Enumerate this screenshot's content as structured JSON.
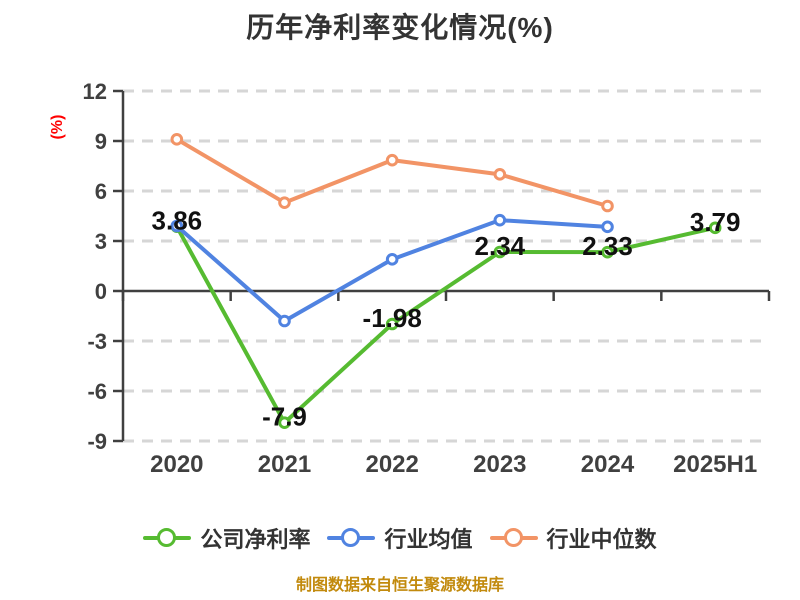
{
  "title": "历年净利率变化情况(%)",
  "y_axis_unit": "(%)",
  "source_note": "制图数据来自恒生聚源数据库",
  "chart_data": {
    "type": "line",
    "categories": [
      "2020",
      "2021",
      "2022",
      "2023",
      "2024",
      "2025H1"
    ],
    "series": [
      {
        "name": "公司净利率",
        "color": "#56bb31",
        "values": [
          3.86,
          -7.9,
          -1.98,
          2.34,
          2.33,
          3.79
        ],
        "point_labels": [
          "3.86",
          "-7.9",
          "-1.98",
          "2.34",
          "2.33",
          "3.79"
        ]
      },
      {
        "name": "行业均值",
        "color": "#5083e1",
        "values": [
          3.9,
          -1.8,
          1.9,
          4.25,
          3.85,
          null
        ],
        "point_labels": null
      },
      {
        "name": "行业中位数",
        "color": "#f29466",
        "values": [
          9.1,
          5.3,
          7.85,
          7.0,
          5.1,
          null
        ],
        "point_labels": null
      }
    ],
    "ylim": [
      -9,
      12
    ],
    "yticks": [
      12,
      9,
      6,
      3,
      0,
      -3,
      -6,
      -9
    ],
    "grid": "horizontal-dashed",
    "legend_position": "bottom",
    "marker": "white-filled-circle"
  },
  "colors": {
    "title": "#333333",
    "axis_text": "#404040",
    "axis_line": "#404040",
    "grid_line": "#d6d6d6",
    "unit_label": "#ff0000",
    "data_label": "#111111",
    "source_note": "#c28a0d"
  }
}
